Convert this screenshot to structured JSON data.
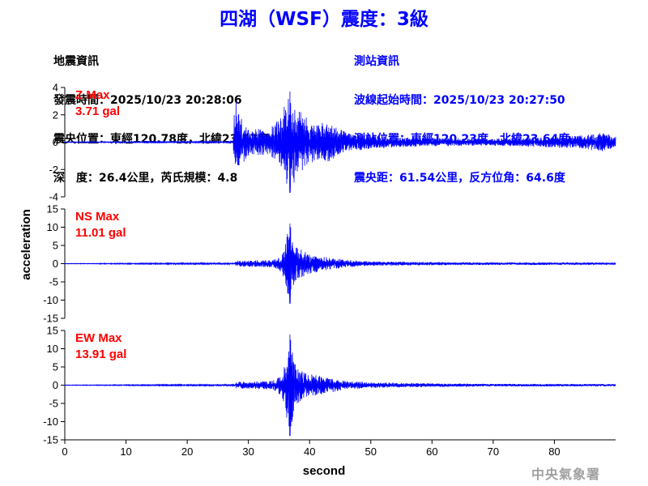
{
  "title": "四湖（WSF）震度：3級",
  "quake_info": {
    "heading": "地震資訊",
    "time": "發震時間：2025/10/23 20:28:06",
    "epicenter": "震央位置：東經120.78度，北緯23.87度",
    "depth_magnitude": "深　度：26.4公里，芮氏規模：4.8"
  },
  "station_info": {
    "heading": "測站資訊",
    "wave_start": "波線起始時間：2025/10/23 20:27:50",
    "location": "測站位置：東經120.23度，北緯23.64度",
    "distance_azimuth": "震央距：61.54公里，反方位角：64.6度"
  },
  "credit": "中央氣象署",
  "colors": {
    "trace": "#0000ff",
    "max_label": "#ff0000",
    "axis": "#000000"
  },
  "chart_data": {
    "type": "line",
    "xlabel": "second",
    "ylabel": "acceleration",
    "xlim": [
      0,
      90
    ],
    "x_ticks": [
      0,
      10,
      20,
      30,
      40,
      50,
      60,
      70,
      80
    ],
    "panels": [
      {
        "name": "Z",
        "max_label": "Z Max",
        "max_value": "3.71 gal",
        "ylim": [
          -4,
          4
        ],
        "y_ticks": [
          -4,
          -2,
          0,
          2,
          4
        ],
        "envelope": [
          [
            0,
            0.02
          ],
          [
            27.5,
            0.05
          ],
          [
            27.8,
            3.4
          ],
          [
            28.5,
            2.0
          ],
          [
            30,
            1.1
          ],
          [
            33,
            0.9
          ],
          [
            35,
            1.7
          ],
          [
            36.8,
            3.71
          ],
          [
            38,
            2.4
          ],
          [
            41,
            1.3
          ],
          [
            43,
            1.5
          ],
          [
            46,
            0.7
          ],
          [
            50,
            0.5
          ],
          [
            55,
            0.35
          ],
          [
            60,
            0.3
          ],
          [
            70,
            0.25
          ],
          [
            80,
            0.4
          ],
          [
            84,
            0.5
          ],
          [
            88,
            0.7
          ],
          [
            90,
            0.4
          ]
        ]
      },
      {
        "name": "NS",
        "max_label": "NS Max",
        "max_value": "11.01 gal",
        "ylim": [
          -15,
          15
        ],
        "y_ticks": [
          -15,
          -10,
          -5,
          0,
          5,
          10,
          15
        ],
        "envelope": [
          [
            0,
            0.05
          ],
          [
            27.8,
            0.2
          ],
          [
            28,
            0.8
          ],
          [
            30,
            0.9
          ],
          [
            34,
            1.0
          ],
          [
            35.5,
            2.5
          ],
          [
            36.8,
            11.01
          ],
          [
            37.5,
            5.0
          ],
          [
            39,
            3.5
          ],
          [
            42,
            2.0
          ],
          [
            46,
            1.0
          ],
          [
            50,
            0.6
          ],
          [
            60,
            0.45
          ],
          [
            70,
            0.35
          ],
          [
            80,
            0.35
          ],
          [
            90,
            0.3
          ]
        ]
      },
      {
        "name": "EW",
        "max_label": "EW Max",
        "max_value": "13.91 gal",
        "ylim": [
          -15,
          15
        ],
        "y_ticks": [
          -15,
          -10,
          -5,
          0,
          5,
          10,
          15
        ],
        "envelope": [
          [
            0,
            0.05
          ],
          [
            27.8,
            0.2
          ],
          [
            28,
            0.9
          ],
          [
            30,
            1.0
          ],
          [
            34,
            1.2
          ],
          [
            35.5,
            3.0
          ],
          [
            36.8,
            13.91
          ],
          [
            37.5,
            6.0
          ],
          [
            39,
            3.5
          ],
          [
            42,
            2.5
          ],
          [
            46,
            1.2
          ],
          [
            50,
            0.8
          ],
          [
            60,
            0.5
          ],
          [
            70,
            0.35
          ],
          [
            80,
            0.35
          ],
          [
            90,
            0.3
          ]
        ]
      }
    ]
  }
}
